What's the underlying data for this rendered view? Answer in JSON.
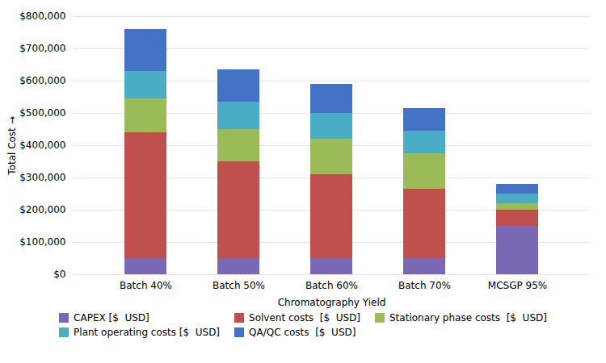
{
  "chart_data": {
    "type": "bar",
    "stacked": true,
    "categories": [
      "Batch 40%",
      "Batch 50%",
      "Batch 60%",
      "Batch 70%",
      "MCSGP 95%"
    ],
    "series": [
      {
        "name": "CAPEX [$  USD]",
        "color": "#7b68b5",
        "values": [
          50000,
          50000,
          50000,
          50000,
          150000
        ]
      },
      {
        "name": "Solvent costs  [$  USD]",
        "color": "#c0504d",
        "values": [
          390000,
          300000,
          260000,
          215000,
          50000
        ]
      },
      {
        "name": "Stationary phase costs  [$  USD]",
        "color": "#9bbb59",
        "values": [
          105000,
          100000,
          110000,
          110000,
          20000
        ]
      },
      {
        "name": "Plant operating costs [$  USD]",
        "color": "#4bacc6",
        "values": [
          85000,
          85000,
          80000,
          70000,
          30000
        ]
      },
      {
        "name": "QA/QC costs  [$  USD]",
        "color": "#4472c4",
        "values": [
          130000,
          100000,
          90000,
          70000,
          30000
        ]
      }
    ],
    "xlabel": "Chromatography Yield",
    "ylabel": "Total Cost",
    "ylim": [
      0,
      800000
    ],
    "yticks": [
      {
        "value": 0,
        "label": "$0"
      },
      {
        "value": 100000,
        "label": "$100,000"
      },
      {
        "value": 200000,
        "label": "$200,000"
      },
      {
        "value": 300000,
        "label": "$300,000"
      },
      {
        "value": 400000,
        "label": "$400,000"
      },
      {
        "value": 500000,
        "label": "$500,000"
      },
      {
        "value": 600000,
        "label": "$600,000"
      },
      {
        "value": 700000,
        "label": "$700,000"
      },
      {
        "value": 800000,
        "label": "$800,000"
      }
    ],
    "grid": true,
    "legend": "bottom"
  }
}
